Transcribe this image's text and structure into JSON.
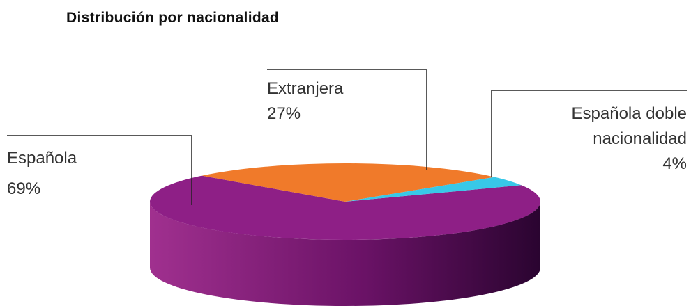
{
  "chart_data": {
    "type": "pie",
    "title": "Distribución por nacionalidad",
    "categories": [
      "Española",
      "Extranjera",
      "Española doble nacionalidad"
    ],
    "values": [
      69,
      27,
      4
    ],
    "value_labels": [
      "69%",
      "27%",
      "4%"
    ],
    "colors": [
      "#8e1f86",
      "#f07a2a",
      "#38c8e8"
    ]
  }
}
